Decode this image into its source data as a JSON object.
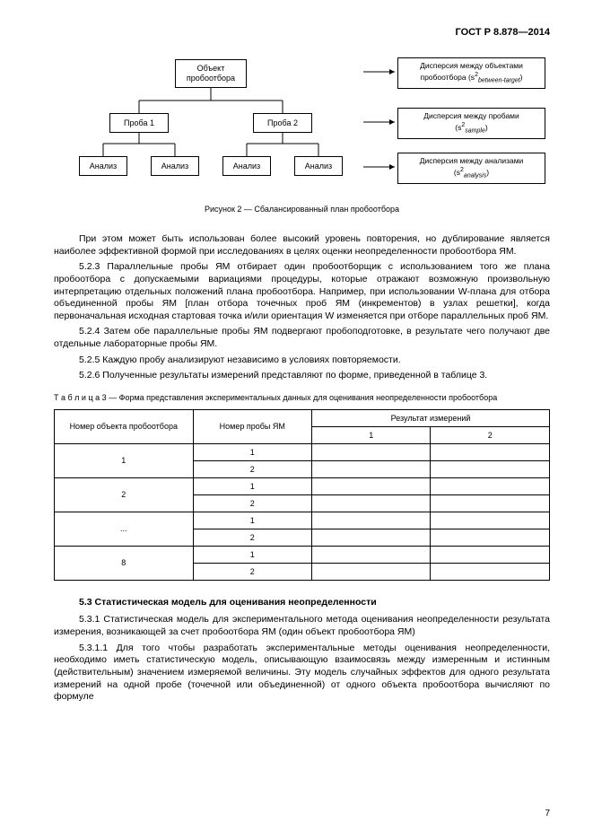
{
  "header": "ГОСТ Р 8.878—2014",
  "diagram": {
    "root": "Объект\nпробоотбора",
    "sample1": "Проба 1",
    "sample2": "Проба 2",
    "analysis": "Анализ",
    "var1_line1": "Дисперсия между объектами",
    "var1_line2": "пробоотбора (s",
    "var1_sub": "between-target",
    "var2_line1": "Дисперсия между пробами",
    "var2_line2": "(s",
    "var2_sub": "sample",
    "var3_line1": "Дисперсия между анализами",
    "var3_line2": "(s",
    "var3_sub": "analysis",
    "caption": "Рисунок 2 — Сбалансированный план пробоотбора"
  },
  "paragraphs": {
    "p1": "При этом может быть использован более высокий уровень повторения, но дублирование является наиболее эффективной формой при исследованиях в целях оценки неопределенности пробоотбора ЯМ.",
    "p2": "5.2.3 Параллельные пробы ЯМ отбирает один пробоотборщик с использованием того же плана пробоотбора с допускаемыми вариациями процедуры, которые отражают возможную произвольную интерпретацию отдельных положений плана пробоотбора. Например, при использовании W-плана для отбора объединенной пробы ЯМ [план отбора точечных проб ЯМ (инкрементов) в узлах решетки], когда первоначальная исходная стартовая точка и/или ориентация W изменяется при отборе параллельных проб ЯМ.",
    "p3": "5.2.4 Затем обе параллельные пробы ЯМ подвергают пробоподготовке, в результате чего получают две отдельные лабораторные пробы ЯМ.",
    "p4": "5.2.5 Каждую пробу анализируют независимо в условиях повторяемости.",
    "p5": "5.2.6 Полученные результаты измерений представляют по форме, приведенной в таблице 3."
  },
  "table": {
    "title": "Т а б л и ц а   3 — Форма представления экспериментальных данных для оценивания неопределенности пробоотбора",
    "h1": "Номер объекта пробоотбора",
    "h2": "Номер пробы ЯМ",
    "h3": "Результат измерений",
    "h3a": "1",
    "h3b": "2",
    "rows": [
      {
        "obj": "1",
        "p1": "1",
        "p2": "2"
      },
      {
        "obj": "2",
        "p1": "1",
        "p2": "2"
      },
      {
        "obj": "...",
        "p1": "1",
        "p2": "2"
      },
      {
        "obj": "8",
        "p1": "1",
        "p2": "2"
      }
    ]
  },
  "section53": {
    "title": "5.3 Статистическая модель для оценивания неопределенности",
    "p1": "5.3.1 Статистическая модель для экспериментального метода оценивания неопределенности результата измерения, возникающей за счет пробоотбора ЯМ (один объект пробоотбора ЯМ)",
    "p2": "5.3.1.1 Для того чтобы разработать экспериментальные методы оценивания неопределенности, необходимо иметь статистическую модель, описывающую взаимосвязь между измеренным и истинным (действительным) значением измеряемой величины. Эту модель случайных эффектов для одного результата измерений на одной пробе (точечной или объединенной) от одного объекта пробоотбора вычисляют по формуле"
  },
  "pageNum": "7"
}
